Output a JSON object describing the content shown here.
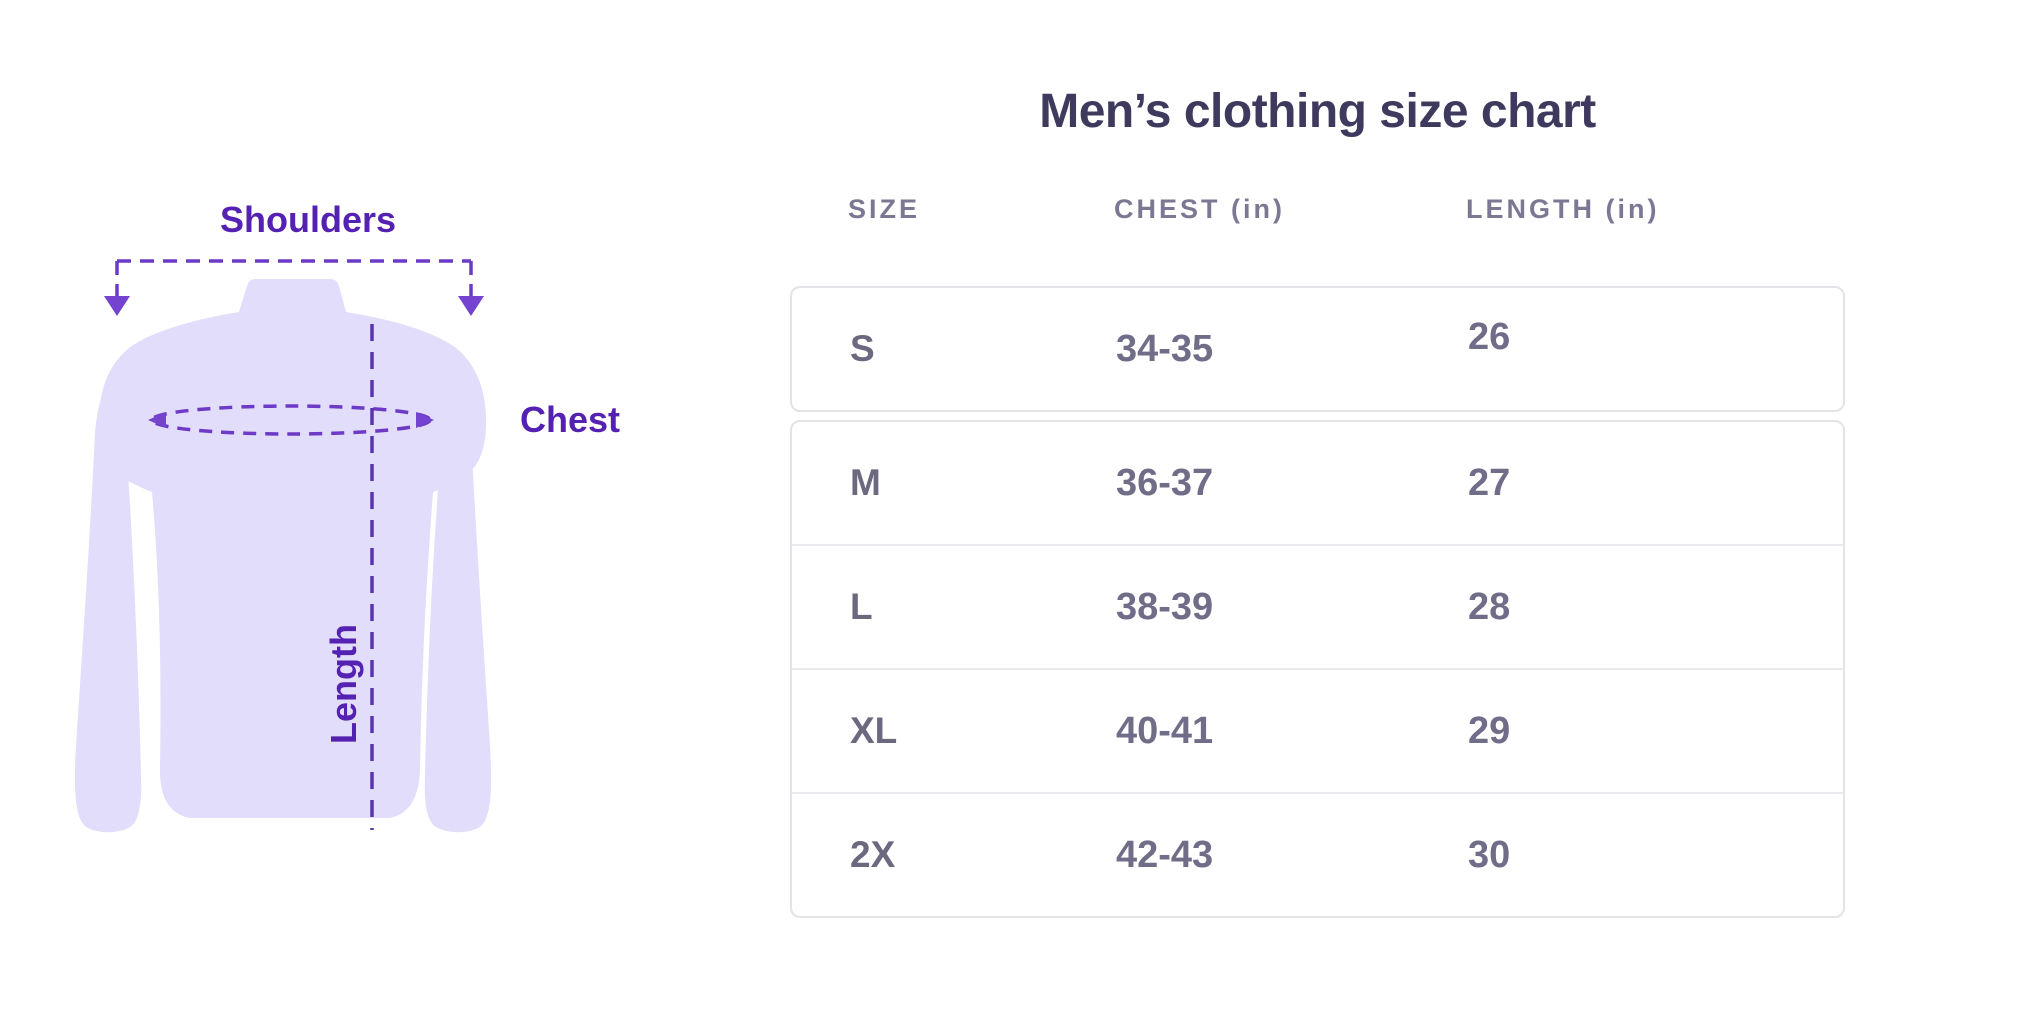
{
  "title": "Men’s clothing size chart",
  "diagram": {
    "shoulders_label": "Shoulders",
    "chest_label": "Chest",
    "length_label": "Length",
    "colors": {
      "shirt_fill": "#e1ddfa",
      "label_purple": "#5421b2",
      "dash_purple": "#6c3ac6",
      "arrow_purple": "#7443cf"
    }
  },
  "table": {
    "header_color": "#7c7894",
    "title_color": "#3d3a5e",
    "value_color": "#706d88"
  },
  "chart_data": {
    "type": "table",
    "title": "Men’s clothing size chart",
    "columns": [
      "SIZE",
      "CHEST (in)",
      "LENGTH (in)"
    ],
    "rows": [
      {
        "size": "S",
        "chest": "34-35",
        "length": "26"
      },
      {
        "size": "M",
        "chest": "36-37",
        "length": "27"
      },
      {
        "size": "L",
        "chest": "38-39",
        "length": "28"
      },
      {
        "size": "XL",
        "chest": "40-41",
        "length": "29"
      },
      {
        "size": "2X",
        "chest": "42-43",
        "length": "30"
      }
    ]
  }
}
